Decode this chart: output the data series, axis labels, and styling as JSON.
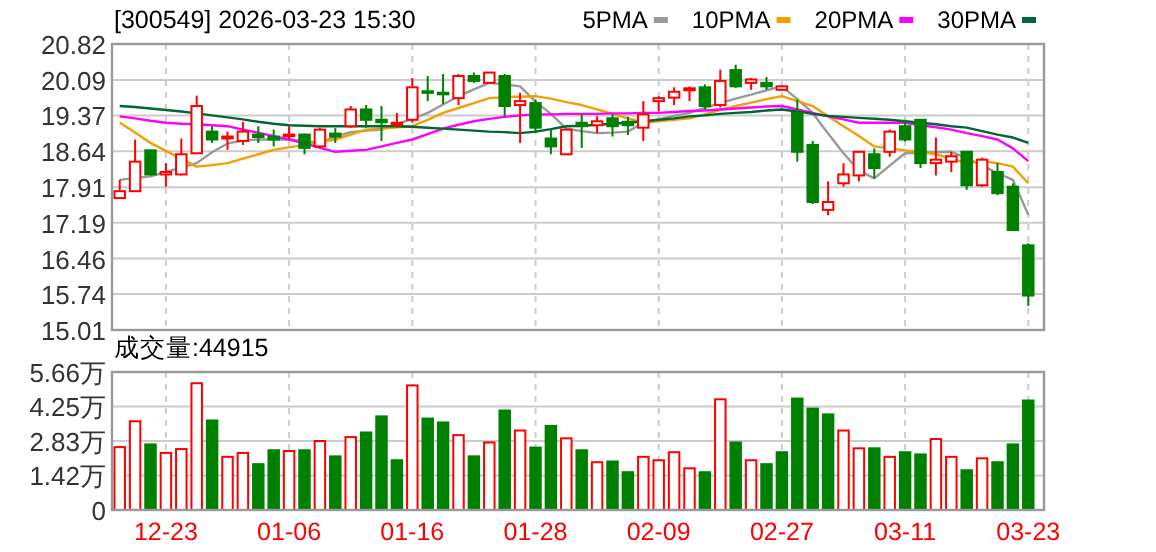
{
  "chart_data": [
    {
      "type": "candlestick",
      "title": "[300549] 2026-03-23 15:30",
      "categories": [
        null,
        null,
        null,
        null,
        null,
        null,
        null,
        null,
        null,
        null,
        null,
        null,
        null,
        null,
        null,
        null,
        null,
        null,
        null,
        null,
        null,
        null,
        null,
        null,
        null,
        null,
        null,
        null,
        null,
        null,
        null,
        null,
        null,
        null,
        null,
        null,
        null,
        null,
        null,
        null,
        null,
        null,
        null,
        null,
        null,
        null,
        null,
        null,
        null,
        null,
        null,
        null,
        null,
        null,
        null,
        null,
        null,
        null,
        null,
        null
      ],
      "ohlc": [
        [
          17.69,
          18.06,
          17.68,
          17.83
        ],
        [
          17.83,
          18.88,
          17.83,
          18.43
        ],
        [
          18.66,
          18.66,
          18.15,
          18.17
        ],
        [
          18.17,
          18.4,
          17.92,
          18.22
        ],
        [
          18.17,
          18.9,
          18.15,
          18.58
        ],
        [
          18.6,
          19.77,
          18.6,
          19.56
        ],
        [
          19.04,
          19.15,
          18.81,
          18.88
        ],
        [
          18.9,
          19.04,
          18.67,
          18.94
        ],
        [
          18.85,
          19.24,
          18.77,
          19.04
        ],
        [
          18.98,
          19.15,
          18.81,
          18.93
        ],
        [
          18.94,
          19.08,
          18.74,
          18.88
        ],
        [
          18.96,
          19.15,
          18.88,
          18.98
        ],
        [
          18.98,
          19.0,
          18.58,
          18.71
        ],
        [
          18.74,
          19.12,
          18.71,
          19.08
        ],
        [
          19.0,
          19.11,
          18.81,
          18.94
        ],
        [
          19.15,
          19.56,
          19.12,
          19.49
        ],
        [
          19.49,
          19.58,
          19.12,
          19.28
        ],
        [
          19.28,
          19.56,
          18.85,
          19.23
        ],
        [
          19.18,
          19.42,
          19.12,
          19.22
        ],
        [
          19.28,
          20.13,
          19.22,
          19.94
        ],
        [
          19.86,
          20.17,
          19.66,
          19.84
        ],
        [
          19.83,
          20.21,
          19.6,
          19.8
        ],
        [
          19.72,
          20.21,
          19.58,
          20.17
        ],
        [
          20.17,
          20.24,
          20.03,
          20.07
        ],
        [
          20.03,
          20.24,
          20.03,
          20.24
        ],
        [
          20.17,
          20.21,
          19.35,
          19.56
        ],
        [
          19.58,
          19.83,
          18.81,
          19.66
        ],
        [
          19.62,
          19.69,
          19.01,
          19.12
        ],
        [
          18.9,
          19.08,
          18.58,
          18.74
        ],
        [
          18.58,
          19.1,
          18.58,
          19.08
        ],
        [
          19.22,
          19.38,
          18.71,
          19.15
        ],
        [
          19.17,
          19.35,
          19.01,
          19.25
        ],
        [
          19.31,
          19.39,
          18.94,
          19.15
        ],
        [
          19.24,
          19.34,
          18.97,
          19.17
        ],
        [
          19.12,
          19.66,
          18.85,
          19.39
        ],
        [
          19.66,
          19.76,
          19.45,
          19.72
        ],
        [
          19.73,
          19.94,
          19.58,
          19.85
        ],
        [
          19.88,
          19.96,
          19.66,
          19.92
        ],
        [
          19.94,
          20.0,
          19.49,
          19.56
        ],
        [
          19.58,
          20.3,
          19.53,
          20.07
        ],
        [
          20.29,
          20.4,
          19.93,
          19.96
        ],
        [
          20.03,
          20.13,
          19.89,
          20.1
        ],
        [
          20.03,
          20.15,
          19.89,
          19.96
        ],
        [
          19.89,
          19.97,
          19.87,
          19.96
        ],
        [
          19.42,
          19.69,
          18.43,
          18.63
        ],
        [
          18.77,
          18.85,
          17.57,
          17.61
        ],
        [
          17.45,
          18.03,
          17.34,
          17.61
        ],
        [
          17.99,
          18.4,
          17.92,
          18.17
        ],
        [
          18.15,
          18.63,
          18.03,
          18.63
        ],
        [
          18.58,
          18.7,
          18.09,
          18.3
        ],
        [
          18.63,
          19.08,
          18.53,
          19.04
        ],
        [
          19.15,
          19.28,
          18.84,
          18.88
        ],
        [
          19.28,
          19.28,
          18.3,
          18.4
        ],
        [
          18.4,
          18.92,
          18.15,
          18.47
        ],
        [
          18.43,
          18.63,
          18.22,
          18.54
        ],
        [
          18.63,
          18.63,
          17.86,
          17.95
        ],
        [
          17.95,
          18.51,
          17.92,
          18.47
        ],
        [
          18.22,
          18.4,
          17.75,
          17.79
        ],
        [
          17.92,
          17.99,
          17.04,
          17.04
        ],
        [
          16.73,
          16.77,
          15.5,
          15.71
        ]
      ],
      "colors": [
        "#ff0000",
        "#ff0000",
        "#008000",
        "#ff0000",
        "#ff0000",
        "#ff0000",
        "#008000",
        "#ff0000",
        "#ff0000",
        "#008000",
        "#008000",
        "#ff0000",
        "#008000",
        "#ff0000",
        "#008000",
        "#ff0000",
        "#008000",
        "#008000",
        "#ff0000",
        "#ff0000",
        "#008000",
        "#008000",
        "#ff0000",
        "#008000",
        "#ff0000",
        "#008000",
        "#ff0000",
        "#008000",
        "#008000",
        "#ff0000",
        "#008000",
        "#ff0000",
        "#008000",
        "#008000",
        "#ff0000",
        "#ff0000",
        "#ff0000",
        "#ff0000",
        "#008000",
        "#ff0000",
        "#008000",
        "#ff0000",
        "#008000",
        "#ff0000",
        "#008000",
        "#008000",
        "#ff0000",
        "#ff0000",
        "#ff0000",
        "#008000",
        "#ff0000",
        "#008000",
        "#008000",
        "#ff0000",
        "#ff0000",
        "#008000",
        "#ff0000",
        "#008000",
        "#008000",
        "#008000"
      ],
      "series": [
        {
          "type": "line",
          "name": "5PMA",
          "color": "#999999",
          "values": [
            18.06,
            18.1,
            18.13,
            18.22,
            18.31,
            18.4,
            18.62,
            18.8,
            18.86,
            18.88,
            18.88,
            18.88,
            18.85,
            18.81,
            18.94,
            19.03,
            19.06,
            19.08,
            19.19,
            19.3,
            19.42,
            19.59,
            19.76,
            19.9,
            20.03,
            20.0,
            19.96,
            19.65,
            19.4,
            19.1,
            19.05,
            19.01,
            19.02,
            19.04,
            19.22,
            19.29,
            19.36,
            19.42,
            19.52,
            19.62,
            19.71,
            19.79,
            19.88,
            19.96,
            19.7,
            19.42,
            19.0,
            18.6,
            18.25,
            18.09,
            18.35,
            18.6,
            18.61,
            18.62,
            18.63,
            18.5,
            18.35,
            18.2,
            18.06,
            17.35
          ]
        },
        {
          "type": "line",
          "name": "10PMA",
          "color": "#f0a000",
          "values": [
            19.22,
            19.02,
            18.81,
            18.65,
            18.49,
            18.33,
            18.36,
            18.4,
            18.49,
            18.58,
            18.67,
            18.72,
            18.77,
            18.83,
            18.88,
            18.98,
            19.08,
            19.1,
            19.13,
            19.15,
            19.28,
            19.42,
            19.52,
            19.62,
            19.72,
            19.74,
            19.75,
            19.76,
            19.71,
            19.64,
            19.58,
            19.49,
            19.4,
            19.31,
            19.22,
            19.25,
            19.28,
            19.31,
            19.39,
            19.48,
            19.56,
            19.63,
            19.7,
            19.76,
            19.66,
            19.56,
            19.35,
            19.15,
            18.95,
            18.74,
            18.7,
            18.66,
            18.62,
            18.58,
            18.49,
            18.4,
            18.44,
            18.4,
            18.33,
            17.99
          ]
        },
        {
          "type": "line",
          "name": "20PMA",
          "color": "#ff00ff",
          "values": [
            19.35,
            19.31,
            19.26,
            19.22,
            19.2,
            19.19,
            19.17,
            19.15,
            19.08,
            19.02,
            18.95,
            18.88,
            18.8,
            18.71,
            18.63,
            18.65,
            18.67,
            18.74,
            18.81,
            18.88,
            18.99,
            19.1,
            19.18,
            19.25,
            19.3,
            19.34,
            19.37,
            19.39,
            19.39,
            19.4,
            19.4,
            19.4,
            19.41,
            19.41,
            19.42,
            19.42,
            19.44,
            19.46,
            19.47,
            19.49,
            19.51,
            19.53,
            19.55,
            19.56,
            19.49,
            19.42,
            19.35,
            19.29,
            19.22,
            19.22,
            19.22,
            19.22,
            19.17,
            19.13,
            19.08,
            19.01,
            18.95,
            18.88,
            18.7,
            18.44
          ]
        },
        {
          "type": "line",
          "name": "30PMA",
          "color": "#006633",
          "values": [
            19.56,
            19.54,
            19.51,
            19.48,
            19.45,
            19.41,
            19.37,
            19.33,
            19.29,
            19.24,
            19.2,
            19.17,
            19.16,
            19.15,
            19.15,
            19.15,
            19.15,
            19.15,
            19.15,
            19.14,
            19.12,
            19.1,
            19.08,
            19.06,
            19.04,
            19.03,
            19.01,
            19.04,
            19.09,
            19.15,
            19.16,
            19.18,
            19.2,
            19.22,
            19.25,
            19.28,
            19.31,
            19.35,
            19.37,
            19.4,
            19.42,
            19.44,
            19.47,
            19.49,
            19.45,
            19.4,
            19.36,
            19.34,
            19.32,
            19.3,
            19.28,
            19.25,
            19.22,
            19.19,
            19.15,
            19.12,
            19.05,
            18.98,
            18.92,
            18.81
          ]
        }
      ],
      "ylim": [
        15.01,
        20.82
      ],
      "yticks": [
        15.01,
        15.74,
        16.46,
        17.19,
        17.91,
        18.64,
        19.37,
        20.09,
        20.82
      ],
      "grid": true,
      "legend": "top right",
      "tick_labels": "y"
    },
    {
      "type": "bar",
      "title": "成交量:44915",
      "categories": [
        null,
        null,
        null,
        "12-23",
        null,
        null,
        null,
        null,
        null,
        null,
        null,
        "01-06",
        null,
        null,
        null,
        null,
        null,
        null,
        null,
        "01-16",
        null,
        null,
        null,
        null,
        null,
        null,
        null,
        "01-28",
        null,
        null,
        null,
        null,
        null,
        null,
        null,
        "02-09",
        null,
        null,
        null,
        null,
        null,
        null,
        null,
        "02-27",
        null,
        null,
        null,
        null,
        null,
        null,
        null,
        "03-11",
        null,
        null,
        null,
        null,
        null,
        null,
        null,
        "03-23"
      ],
      "values": [
        2.58,
        3.64,
        2.69,
        2.34,
        2.5,
        5.2,
        3.67,
        2.18,
        2.34,
        1.88,
        2.45,
        2.42,
        2.45,
        2.83,
        2.2,
        2.99,
        3.18,
        3.84,
        2.04,
        5.11,
        3.75,
        3.59,
        3.07,
        2.2,
        2.77,
        4.08,
        3.26,
        2.56,
        3.45,
        2.94,
        2.45,
        1.96,
        1.99,
        1.55,
        2.18,
        2.04,
        2.37,
        1.71,
        1.55,
        4.54,
        2.77,
        2.04,
        1.88,
        2.37,
        4.57,
        4.16,
        3.92,
        3.26,
        2.53,
        2.53,
        2.18,
        2.37,
        2.28,
        2.91,
        2.18,
        1.63,
        2.12,
        1.96,
        2.69,
        4.49
      ],
      "colors": [
        "#ff0000",
        "#ff0000",
        "#008000",
        "#ff0000",
        "#ff0000",
        "#ff0000",
        "#008000",
        "#ff0000",
        "#ff0000",
        "#008000",
        "#008000",
        "#ff0000",
        "#008000",
        "#ff0000",
        "#008000",
        "#ff0000",
        "#008000",
        "#008000",
        "#008000",
        "#ff0000",
        "#008000",
        "#008000",
        "#ff0000",
        "#008000",
        "#ff0000",
        "#008000",
        "#ff0000",
        "#008000",
        "#008000",
        "#ff0000",
        "#008000",
        "#ff0000",
        "#008000",
        "#008000",
        "#ff0000",
        "#ff0000",
        "#ff0000",
        "#ff0000",
        "#008000",
        "#ff0000",
        "#008000",
        "#ff0000",
        "#008000",
        "#008000",
        "#008000",
        "#008000",
        "#008000",
        "#ff0000",
        "#ff0000",
        "#008000",
        "#ff0000",
        "#008000",
        "#008000",
        "#ff0000",
        "#ff0000",
        "#008000",
        "#ff0000",
        "#008000",
        "#008000",
        "#008000"
      ],
      "ylim": [
        0,
        5.66
      ],
      "yticks": [
        0,
        {
          "value": 1.42,
          "label": "1.42万"
        },
        {
          "value": 2.83,
          "label": "2.83万"
        },
        {
          "value": 4.25,
          "label": "4.25万"
        },
        {
          "value": 5.66,
          "label": "5.66万"
        }
      ],
      "grid": true
    }
  ]
}
